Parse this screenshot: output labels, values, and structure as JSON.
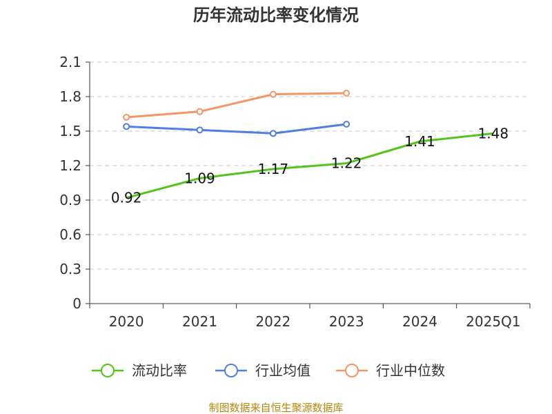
{
  "chart_data": {
    "type": "line",
    "title": "历年流动比率变化情况",
    "categories": [
      "2020",
      "2021",
      "2022",
      "2023",
      "2024",
      "2025Q1"
    ],
    "y_ticks": [
      "0",
      "0.3",
      "0.6",
      "0.9",
      "1.2",
      "1.5",
      "1.8",
      "2.1"
    ],
    "ylim": [
      0,
      2.1
    ],
    "grid": true,
    "legend_position": "bottom",
    "series": [
      {
        "name": "流动比率",
        "color": "#52c41a",
        "values": [
          0.92,
          1.09,
          1.17,
          1.22,
          1.41,
          1.48
        ],
        "labels": [
          "0.92",
          "1.09",
          "1.17",
          "1.22",
          "1.41",
          "1.48"
        ],
        "markers": false
      },
      {
        "name": "行业均值",
        "color": "#4e7de3",
        "values": [
          1.54,
          1.51,
          1.48,
          1.56,
          null,
          null
        ],
        "markers": true
      },
      {
        "name": "行业中位数",
        "color": "#f59464",
        "values": [
          1.62,
          1.67,
          1.82,
          1.83,
          null,
          null
        ],
        "markers": true
      }
    ]
  },
  "source_text": "制图数据来自恒生聚源数据库"
}
